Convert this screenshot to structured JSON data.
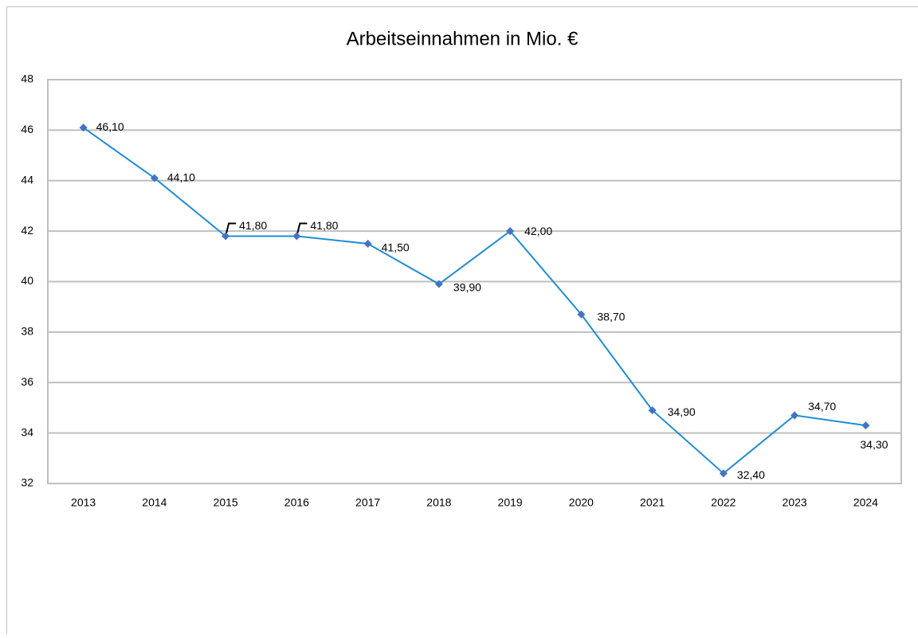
{
  "chart_data": {
    "type": "line",
    "title": "Arbeitseinnahmen in Mio. €",
    "categories": [
      "2013",
      "2014",
      "2015",
      "2016",
      "2017",
      "2018",
      "2019",
      "2020",
      "2021",
      "2022",
      "2023",
      "2024"
    ],
    "series": [
      {
        "name": "Arbeitseinnahmen",
        "color": "#1f8dd6",
        "marker_color": "#4472c4",
        "values": [
          46.1,
          44.1,
          41.8,
          41.8,
          41.5,
          39.9,
          42.0,
          38.7,
          34.9,
          32.4,
          34.7,
          34.3
        ],
        "value_labels": [
          "46,10",
          "44,10",
          "41,80",
          "41,80",
          "41,50",
          "39,90",
          "42,00",
          "38,70",
          "34,90",
          "32,40",
          "34,70",
          "34,30"
        ]
      }
    ],
    "ylim": [
      32,
      48
    ],
    "yticks": [
      32,
      34,
      36,
      38,
      40,
      42,
      44,
      46,
      48
    ],
    "grid": true
  }
}
